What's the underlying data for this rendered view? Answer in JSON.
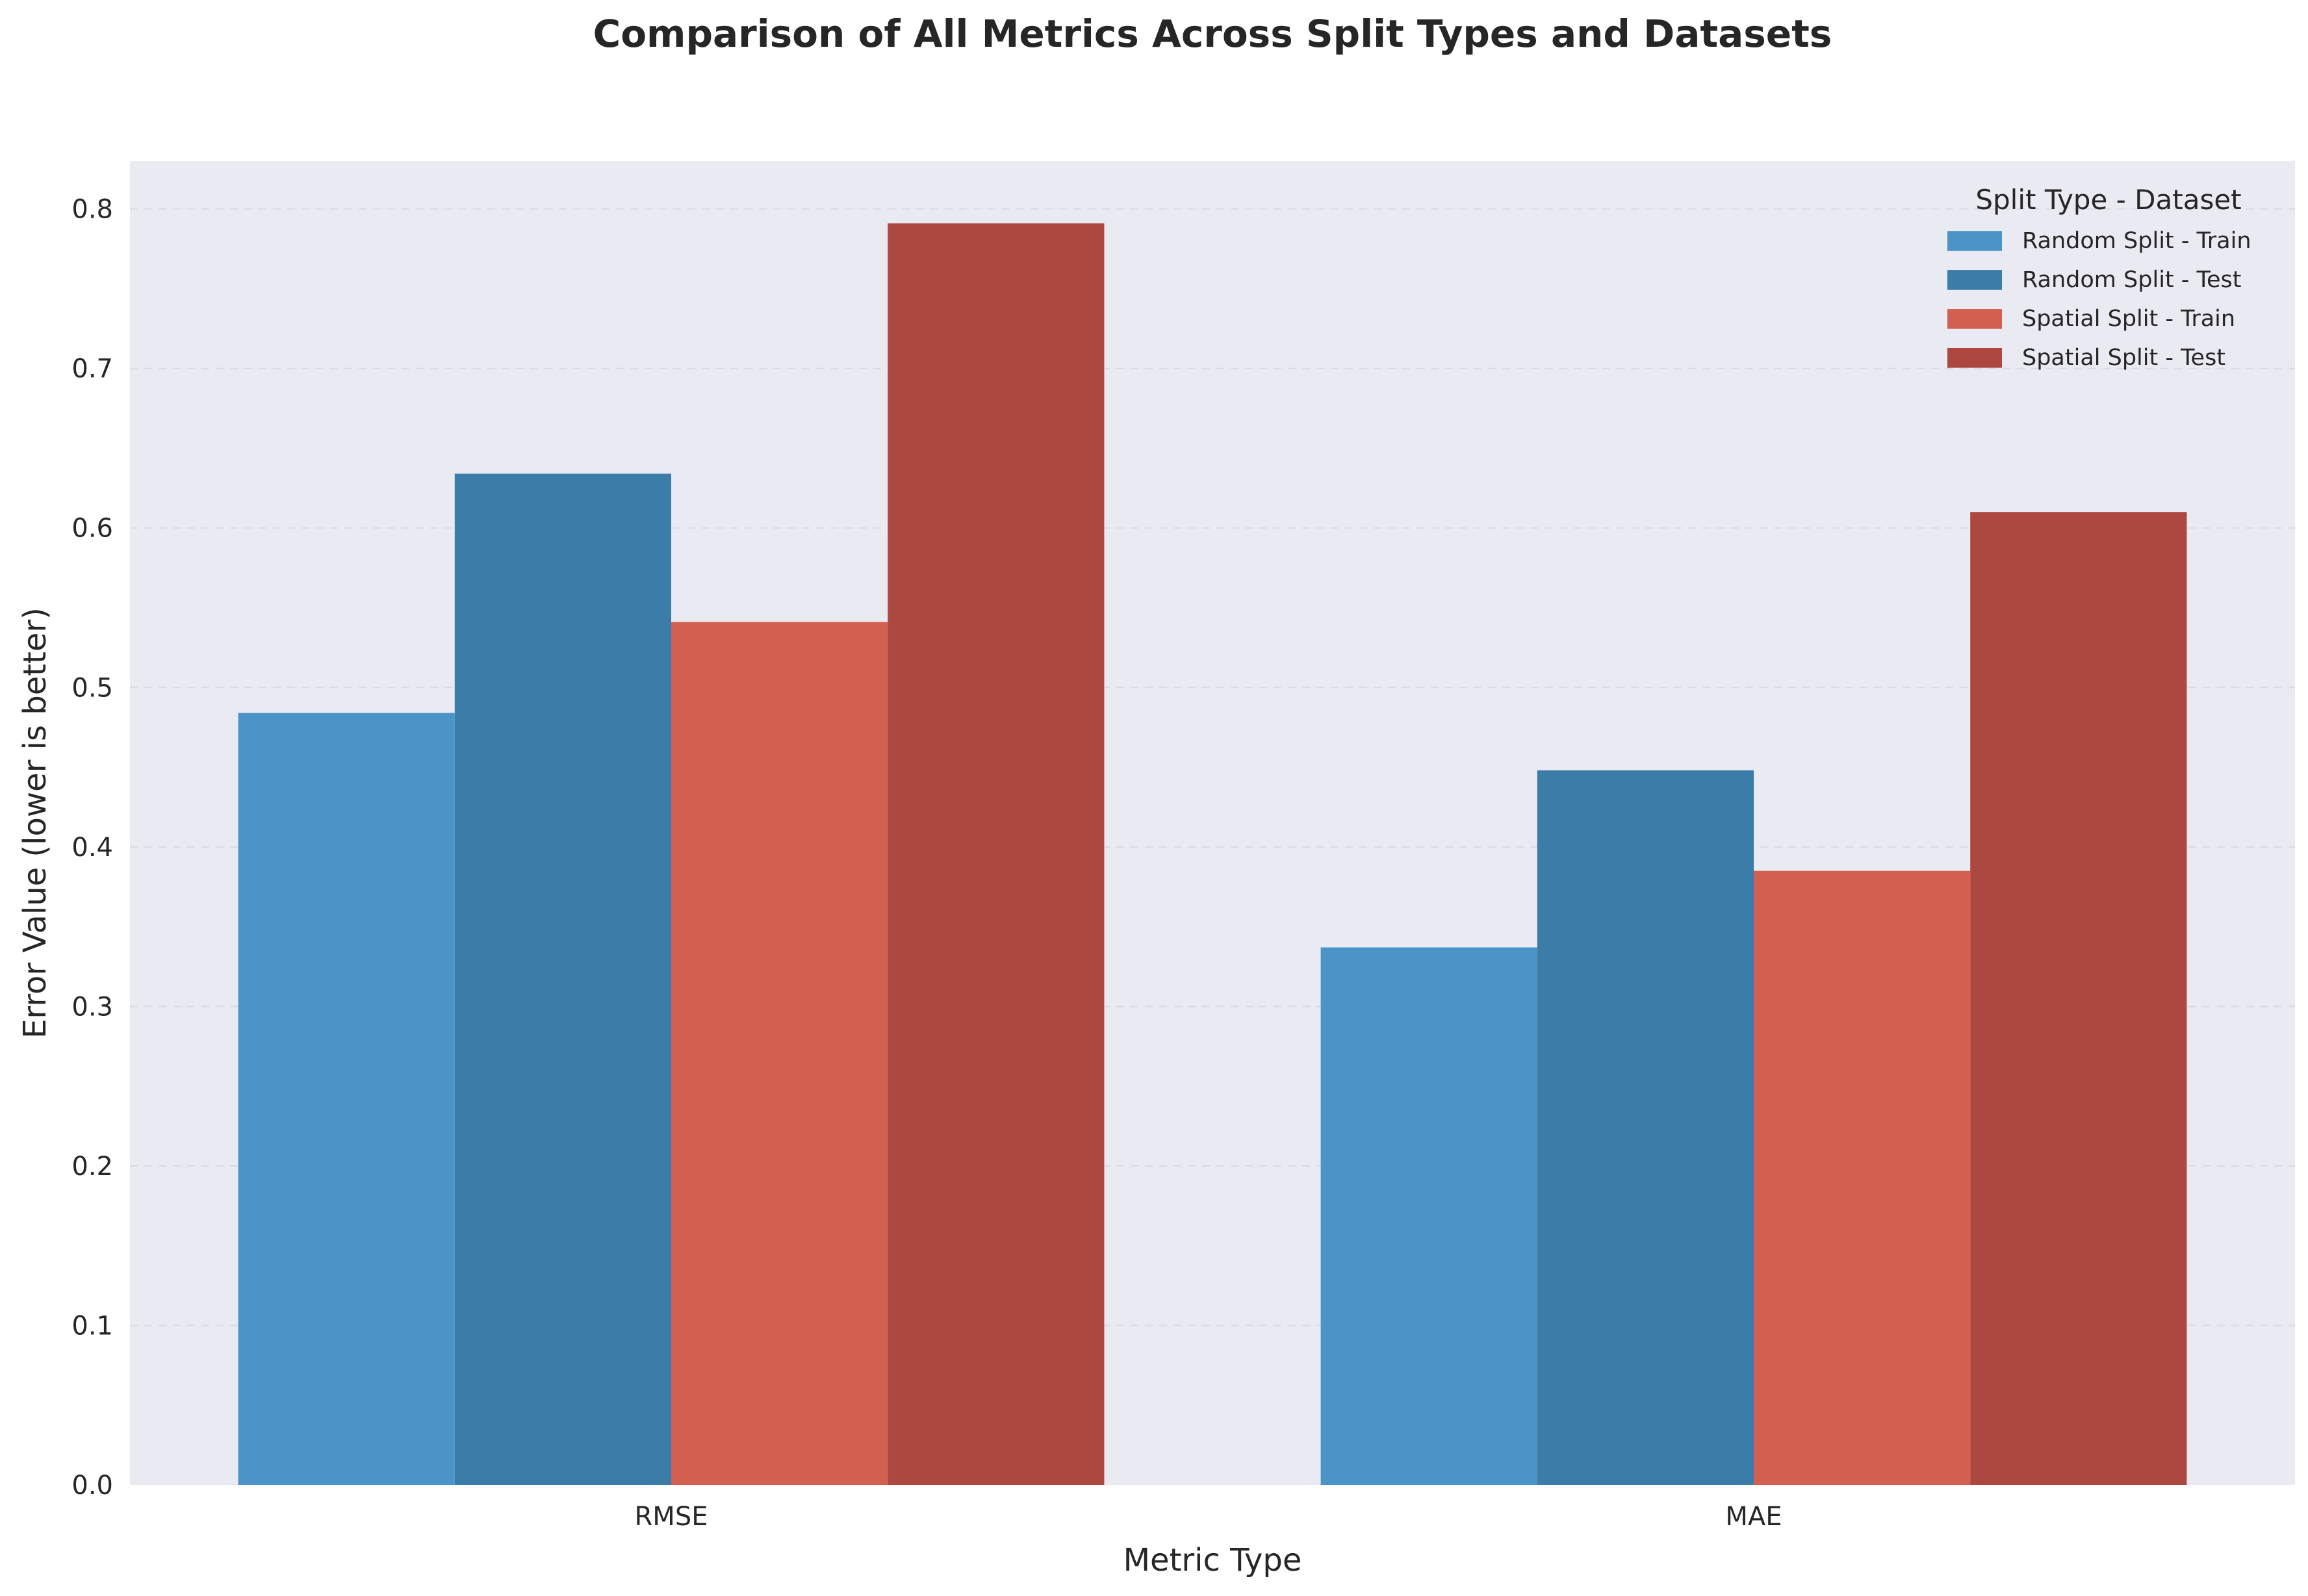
{
  "chart_data": {
    "type": "bar",
    "title": "Comparison of All Metrics Across Split Types and Datasets",
    "xlabel": "Metric Type",
    "ylabel": "Error Value (lower is better)",
    "categories": [
      "RMSE",
      "MAE"
    ],
    "ylim": [
      0,
      0.83
    ],
    "yticks": [
      0.0,
      0.1,
      0.2,
      0.3,
      0.4,
      0.5,
      0.6,
      0.7,
      0.8
    ],
    "grid": true,
    "legend": {
      "title": "Split Type - Dataset",
      "placement": "top-right"
    },
    "series": [
      {
        "name": "Random Split - Train",
        "color": "#4a94c7",
        "values": [
          0.484,
          0.337
        ]
      },
      {
        "name": "Random Split - Test",
        "color": "#3c7ca8",
        "values": [
          0.634,
          0.448
        ]
      },
      {
        "name": "Spatial Split - Train",
        "color": "#d35f50",
        "values": [
          0.541,
          0.385
        ]
      },
      {
        "name": "Spatial Split - Test",
        "color": "#ad4840",
        "values": [
          0.791,
          0.61
        ]
      }
    ]
  }
}
